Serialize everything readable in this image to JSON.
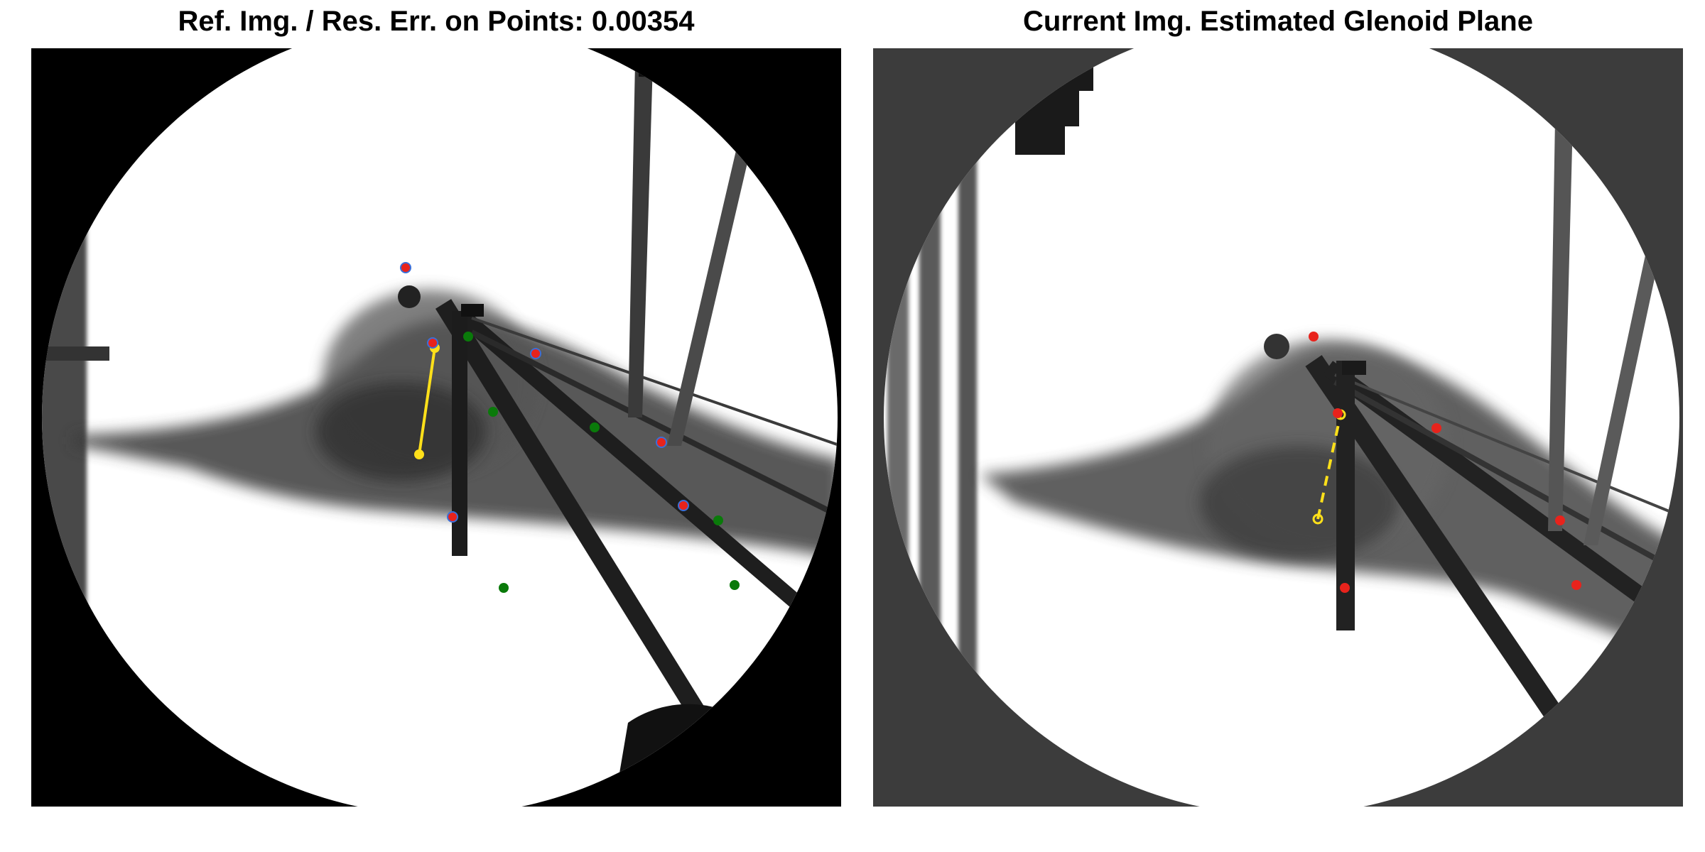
{
  "figure": {
    "left_title": "Ref. Img. / Res. Err. on Points: 0.00354",
    "right_title": "Current Img. Estimated Glenoid Plane"
  },
  "images": {
    "left": {
      "description": "reference x-ray fluoroscopy frame"
    },
    "right": {
      "description": "current x-ray fluoroscopy frame"
    }
  },
  "colors": {
    "marker_red": "#e8231c",
    "marker_green": "#0a7a0a",
    "marker_outline_blue": "#3b6fd8",
    "glenoid_line": "#ffe01a",
    "xray_background_left": "#ffffff",
    "xray_background_right": "#ffffff",
    "collimator_left": "#000000",
    "collimator_right": "#3c3c3c"
  }
}
